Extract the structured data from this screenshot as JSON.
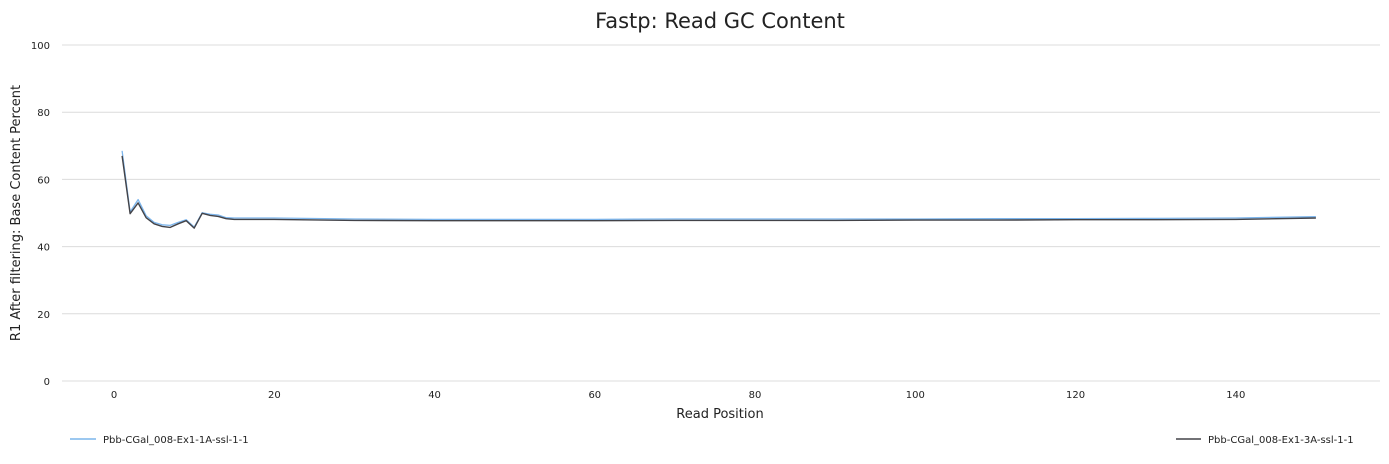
{
  "chart_data": {
    "type": "line",
    "title": "Fastp: Read GC Content",
    "xlabel": "Read Position",
    "ylabel": "R1 After filtering: Base Content Percent",
    "xlim": [
      -6.5,
      158
    ],
    "ylim": [
      0,
      100
    ],
    "x_ticks": [
      0,
      20,
      40,
      60,
      80,
      100,
      120,
      140
    ],
    "y_ticks": [
      0,
      20,
      40,
      60,
      80,
      100
    ],
    "grid": "horizontal",
    "legend_position": "bottom",
    "series": [
      {
        "name": "Pbb-CGal_008-Ex1-1A-ssl-1-1",
        "color": "#7cb5ec",
        "x": [
          1,
          2,
          3,
          4,
          5,
          6,
          7,
          8,
          9,
          10,
          11,
          12,
          13,
          14,
          15,
          20,
          30,
          40,
          50,
          60,
          70,
          80,
          90,
          100,
          110,
          120,
          130,
          140,
          150
        ],
        "values": [
          68.5,
          50.3,
          54.0,
          49.2,
          47.2,
          46.5,
          46.3,
          47.2,
          48.0,
          45.8,
          50.1,
          49.6,
          49.4,
          48.6,
          48.5,
          48.5,
          48.2,
          48.1,
          48.1,
          48.1,
          48.2,
          48.2,
          48.2,
          48.2,
          48.3,
          48.3,
          48.4,
          48.5,
          48.9
        ]
      },
      {
        "name": "Pbb-CGal_008-Ex1-3A-ssl-1-1",
        "color": "#434348",
        "x": [
          1,
          2,
          3,
          4,
          5,
          6,
          7,
          8,
          9,
          10,
          11,
          12,
          13,
          14,
          15,
          20,
          30,
          40,
          50,
          60,
          70,
          80,
          90,
          100,
          110,
          120,
          130,
          140,
          150
        ],
        "values": [
          67.0,
          49.8,
          53.0,
          48.6,
          46.8,
          46.0,
          45.7,
          46.8,
          47.7,
          45.5,
          49.9,
          49.3,
          49.0,
          48.3,
          48.1,
          48.1,
          47.8,
          47.7,
          47.7,
          47.7,
          47.8,
          47.8,
          47.8,
          47.9,
          47.9,
          48.0,
          48.0,
          48.1,
          48.5
        ]
      }
    ]
  }
}
